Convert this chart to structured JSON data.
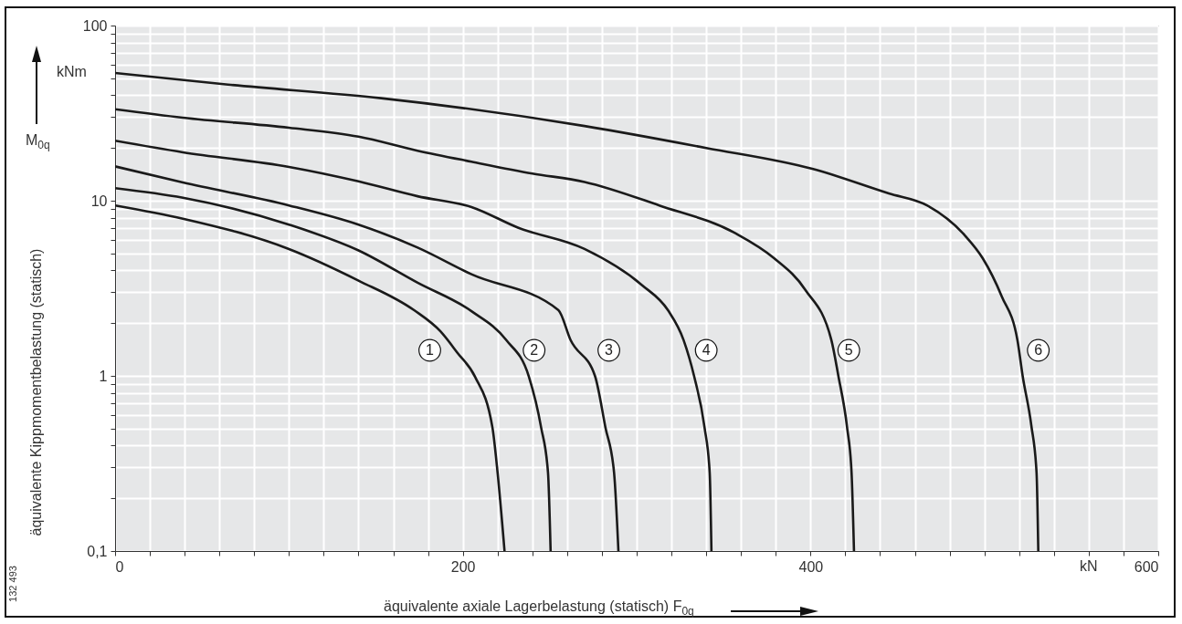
{
  "chart_data": {
    "type": "line",
    "xlabel": "äquivalente axiale Lagerbelastung (statisch) F$_{0q}$",
    "ylabel": "äquivalente  Kippmomentbelastung (statisch)",
    "log": "y",
    "grid": true,
    "line_style": "solid",
    "xlim": [
      0,
      600
    ],
    "ylim": [
      0.1,
      100
    ],
    "xticks": [
      0,
      {
        "value": 20,
        "label": null
      },
      {
        "value": 40,
        "label": null
      },
      {
        "value": 60,
        "label": null
      },
      {
        "value": 80,
        "label": null
      },
      {
        "value": 100,
        "label": null
      },
      {
        "value": 120,
        "label": null
      },
      {
        "value": 140,
        "label": null
      },
      {
        "value": 160,
        "label": null
      },
      {
        "value": 180,
        "label": null
      },
      200,
      {
        "value": 220,
        "label": null
      },
      {
        "value": 240,
        "label": null
      },
      {
        "value": 260,
        "label": null
      },
      {
        "value": 280,
        "label": null
      },
      {
        "value": 300,
        "label": null
      },
      {
        "value": 320,
        "label": null
      },
      {
        "value": 340,
        "label": null
      },
      {
        "value": 360,
        "label": null
      },
      {
        "value": 380,
        "label": null
      },
      400,
      {
        "value": 420,
        "label": null
      },
      {
        "value": 440,
        "label": null
      },
      {
        "value": 460,
        "label": null
      },
      {
        "value": 480,
        "label": null
      },
      {
        "value": 500,
        "label": null
      },
      {
        "value": 520,
        "label": null
      },
      {
        "value": 540,
        "label": null
      },
      {
        "value": 560,
        "label": null
      },
      {
        "value": 580,
        "label": null
      },
      600
    ],
    "yticks": [
      {
        "value": 0.1,
        "label": "0,1"
      },
      {
        "value": 0.2,
        "label": null
      },
      {
        "value": 0.3,
        "label": null
      },
      {
        "value": 0.4,
        "label": null
      },
      {
        "value": 0.5,
        "label": null
      },
      {
        "value": 0.6,
        "label": null
      },
      {
        "value": 0.7,
        "label": null
      },
      {
        "value": 0.8,
        "label": null
      },
      {
        "value": 0.9,
        "label": null
      },
      1,
      {
        "value": 2,
        "label": null
      },
      {
        "value": 3,
        "label": null
      },
      {
        "value": 4,
        "label": null
      },
      {
        "value": 5,
        "label": null
      },
      {
        "value": 6,
        "label": null
      },
      {
        "value": 7,
        "label": null
      },
      {
        "value": 8,
        "label": null
      },
      {
        "value": 9,
        "label": null
      },
      10,
      {
        "value": 20,
        "label": null
      },
      {
        "value": 30,
        "label": null
      },
      {
        "value": 40,
        "label": null
      },
      {
        "value": 50,
        "label": null
      },
      {
        "value": 60,
        "label": null
      },
      {
        "value": 70,
        "label": null
      },
      {
        "value": 80,
        "label": null
      },
      {
        "value": 90,
        "label": null
      },
      100
    ],
    "series": [
      {
        "color": "#1a1a1a",
        "x": [
          0,
          39,
          100,
          140,
          172,
          187,
          197,
          207,
          217,
          220,
          224
        ],
        "values": [
          9.4,
          7.9,
          5.3,
          3.5,
          2.37,
          1.8,
          1.35,
          0.99,
          0.51,
          0.28,
          0.1
        ]
      },
      {
        "color": "#1a1a1a",
        "x": [
          0,
          39,
          100,
          140,
          174,
          205,
          225,
          238,
          245,
          249,
          250.5
        ],
        "values": [
          11.8,
          10.4,
          7.3,
          5.2,
          3.4,
          2.34,
          1.6,
          0.99,
          0.51,
          0.28,
          0.1
        ]
      },
      {
        "color": "#1a1a1a",
        "x": [
          0,
          39,
          100,
          140,
          174,
          205,
          255,
          262,
          276,
          282,
          287,
          289.5
        ],
        "values": [
          15.7,
          12.7,
          9.4,
          7.3,
          5.4,
          3.8,
          2.37,
          1.6,
          1.0,
          0.51,
          0.28,
          0.1
        ]
      },
      {
        "color": "#1a1a1a",
        "x": [
          0,
          39,
          100,
          140,
          174,
          205,
          232,
          270,
          303,
          318,
          327,
          333,
          339,
          342,
          343
        ],
        "values": [
          22,
          18.9,
          15.6,
          12.9,
          10.6,
          9.2,
          7.0,
          5.3,
          3.3,
          2.37,
          1.6,
          1.0,
          0.51,
          0.28,
          0.1
        ]
      },
      {
        "color": "#1a1a1a",
        "x": [
          0,
          39,
          100,
          140,
          174,
          205,
          240,
          270,
          313,
          357,
          379,
          397,
          412,
          416,
          421,
          423.6,
          425
        ],
        "values": [
          33.3,
          29.8,
          26.1,
          23.2,
          19.3,
          16.7,
          14.3,
          12.8,
          9.4,
          6.5,
          4.7,
          3.1,
          1.6,
          1.0,
          0.51,
          0.28,
          0.1
        ]
      },
      {
        "color": "#1a1a1a",
        "x": [
          0,
          65,
          153,
          270,
          340,
          401,
          445,
          467,
          489,
          499,
          510,
          519,
          522,
          527,
          530,
          531
        ],
        "values": [
          53.6,
          46,
          38.5,
          26.7,
          20,
          15.2,
          11,
          9.4,
          6.3,
          4.7,
          2.84,
          1.6,
          1.0,
          0.52,
          0.28,
          0.1
        ]
      }
    ],
    "annotations": [
      {
        "text": "1",
        "x": 181,
        "y": 1.4
      },
      {
        "text": "2",
        "x": 241,
        "y": 1.4
      },
      {
        "text": "3",
        "x": 284,
        "y": 1.4
      },
      {
        "text": "4",
        "x": 340,
        "y": 1.4
      },
      {
        "text": "5",
        "x": 422,
        "y": 1.4
      },
      {
        "text": "6",
        "x": 531,
        "y": 1.4
      },
      "kNm",
      "kN",
      "M$_{0q}$",
      "132 493"
    ]
  }
}
